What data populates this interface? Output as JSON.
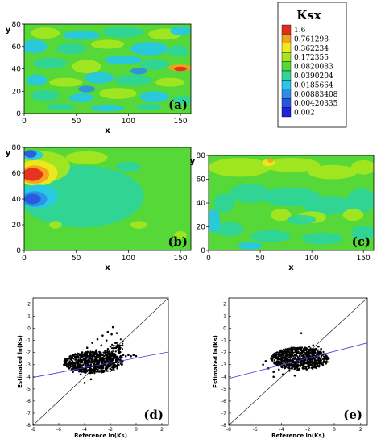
{
  "legend": {
    "title": "Ksx",
    "entries": [
      {
        "label": "1.6",
        "color": "#e62a1e"
      },
      {
        "label": "0.761298",
        "color": "#f2a11e"
      },
      {
        "label": "0.362234",
        "color": "#f2e81e"
      },
      {
        "label": "0.172355",
        "color": "#a6e61e"
      },
      {
        "label": "0.0820083",
        "color": "#55d838"
      },
      {
        "label": "0.0390204",
        "color": "#2fd59b"
      },
      {
        "label": "0.0185664",
        "color": "#27c8e8"
      },
      {
        "label": "0.00883408",
        "color": "#2a8fe6"
      },
      {
        "label": "0.00420335",
        "color": "#2a55e0"
      },
      {
        "label": "0.002",
        "color": "#1e22d8"
      }
    ]
  },
  "chart_data": [
    {
      "type": "heatmap",
      "panel_label": "(a)",
      "xlabel": "x",
      "ylabel": "y",
      "xlim": [
        0,
        160
      ],
      "ylim": [
        0,
        80
      ],
      "xticks": [
        0,
        50,
        100,
        150
      ],
      "yticks": [
        0,
        20,
        40,
        60,
        80
      ]
    },
    {
      "type": "heatmap",
      "panel_label": "(b)",
      "xlabel": "x",
      "ylabel": "y",
      "xlim": [
        0,
        160
      ],
      "ylim": [
        0,
        80
      ],
      "xticks": [
        0,
        50,
        100,
        150
      ],
      "yticks": [
        0,
        20,
        40,
        60,
        80
      ]
    },
    {
      "type": "heatmap",
      "panel_label": "(c)",
      "xlabel": "x",
      "ylabel": "y",
      "xlim": [
        0,
        160
      ],
      "ylim": [
        0,
        80
      ],
      "xticks": [
        0,
        50,
        100,
        150
      ],
      "yticks": [
        0,
        20,
        40,
        60,
        80
      ]
    },
    {
      "type": "scatter",
      "panel_label": "(d)",
      "xlabel": "Reference ln(Ks)",
      "ylabel": "Estimated ln(Ks)",
      "xlim": [
        -8,
        2.5
      ],
      "ylim": [
        -8,
        2.5
      ],
      "xticks": [
        -8,
        -6,
        -4,
        -2,
        0,
        2
      ],
      "yticks": [
        -8,
        -7,
        -6,
        -5,
        -4,
        -3,
        -2,
        -1,
        0,
        1,
        2
      ],
      "points": [
        [
          -5.6,
          -3.0
        ],
        [
          -5.4,
          -2.6
        ],
        [
          -5.2,
          -3.3
        ],
        [
          -5.0,
          -2.4
        ],
        [
          -4.9,
          -3.6
        ],
        [
          -4.8,
          -2.9
        ],
        [
          -4.6,
          -2.2
        ],
        [
          -4.5,
          -3.2
        ],
        [
          -4.4,
          -2.7
        ],
        [
          -4.3,
          -3.8
        ],
        [
          -4.2,
          -2.0
        ],
        [
          -4.1,
          -3.0
        ],
        [
          -4.0,
          -2.5
        ],
        [
          -3.9,
          -3.4
        ],
        [
          -3.8,
          -1.6
        ],
        [
          -3.7,
          -2.8
        ],
        [
          -3.6,
          -3.1
        ],
        [
          -3.5,
          -2.2
        ],
        [
          -3.4,
          -1.2
        ],
        [
          -3.3,
          -3.5
        ],
        [
          -3.2,
          -2.6
        ],
        [
          -3.1,
          -1.8
        ],
        [
          -3.0,
          -0.9
        ],
        [
          -2.9,
          -3.0
        ],
        [
          -2.8,
          -2.3
        ],
        [
          -2.7,
          -1.4
        ],
        [
          -2.6,
          -0.6
        ],
        [
          -2.5,
          -2.7
        ],
        [
          -2.4,
          -1.9
        ],
        [
          -2.3,
          -1.0
        ],
        [
          -2.2,
          -0.3
        ],
        [
          -2.1,
          -2.5
        ],
        [
          -2.0,
          -1.5
        ],
        [
          -1.9,
          -0.5
        ],
        [
          -1.8,
          0.1
        ],
        [
          -1.7,
          -2.2
        ],
        [
          -1.6,
          -1.2
        ],
        [
          -1.5,
          -0.4
        ],
        [
          -1.4,
          -2.6
        ],
        [
          -1.3,
          -1.7
        ],
        [
          -1.2,
          -2.3
        ],
        [
          -1.1,
          -2.4
        ],
        [
          -1.0,
          -2.2
        ],
        [
          -0.8,
          -2.3
        ],
        [
          -0.6,
          -2.2
        ],
        [
          -0.4,
          -2.3
        ],
        [
          -0.2,
          -2.2
        ],
        [
          0.0,
          -2.3
        ],
        [
          -3.5,
          -4.2
        ],
        [
          -4.0,
          -4.5
        ]
      ],
      "fit_line": {
        "intercept": -2.45,
        "slope": 0.2
      }
    },
    {
      "type": "scatter",
      "panel_label": "(e)",
      "xlabel": "Reference ln(Ks)",
      "ylabel": "Estimated ln(Ks)",
      "xlim": [
        -8,
        2.5
      ],
      "ylim": [
        -8,
        2.5
      ],
      "xticks": [
        -8,
        -6,
        -4,
        -2,
        0,
        2
      ],
      "yticks": [
        -8,
        -7,
        -6,
        -5,
        -4,
        -3,
        -2,
        -1,
        0,
        1,
        2
      ],
      "points": [
        [
          -5.4,
          -3.0
        ],
        [
          -5.2,
          -2.7
        ],
        [
          -5.0,
          -3.3
        ],
        [
          -4.8,
          -2.5
        ],
        [
          -4.6,
          -3.6
        ],
        [
          -4.5,
          -2.9
        ],
        [
          -4.4,
          -2.2
        ],
        [
          -4.2,
          -3.4
        ],
        [
          -4.0,
          -2.7
        ],
        [
          -3.9,
          -3.8
        ],
        [
          -3.8,
          -2.1
        ],
        [
          -3.6,
          -3.0
        ],
        [
          -3.5,
          -2.4
        ],
        [
          -3.4,
          -3.5
        ],
        [
          -3.2,
          -1.9
        ],
        [
          -3.1,
          -2.8
        ],
        [
          -3.0,
          -3.2
        ],
        [
          -2.9,
          -2.2
        ],
        [
          -2.8,
          -1.7
        ],
        [
          -2.7,
          -3.4
        ],
        [
          -2.6,
          -2.6
        ],
        [
          -2.5,
          -1.8
        ],
        [
          -2.4,
          -3.0
        ],
        [
          -2.3,
          -2.3
        ],
        [
          -2.2,
          -1.6
        ],
        [
          -2.1,
          -2.9
        ],
        [
          -2.0,
          -2.1
        ],
        [
          -1.9,
          -1.5
        ],
        [
          -1.8,
          -2.7
        ],
        [
          -1.7,
          -1.9
        ],
        [
          -1.6,
          -1.4
        ],
        [
          -1.5,
          -2.5
        ],
        [
          -1.4,
          -1.7
        ],
        [
          -1.3,
          -2.2
        ],
        [
          -1.2,
          -1.5
        ],
        [
          -1.1,
          -2.0
        ],
        [
          -1.0,
          -1.7
        ],
        [
          -2.5,
          -0.4
        ],
        [
          -3.0,
          -3.9
        ],
        [
          -4.6,
          -4.0
        ]
      ],
      "fit_line": {
        "intercept": -1.9,
        "slope": 0.28
      }
    }
  ]
}
